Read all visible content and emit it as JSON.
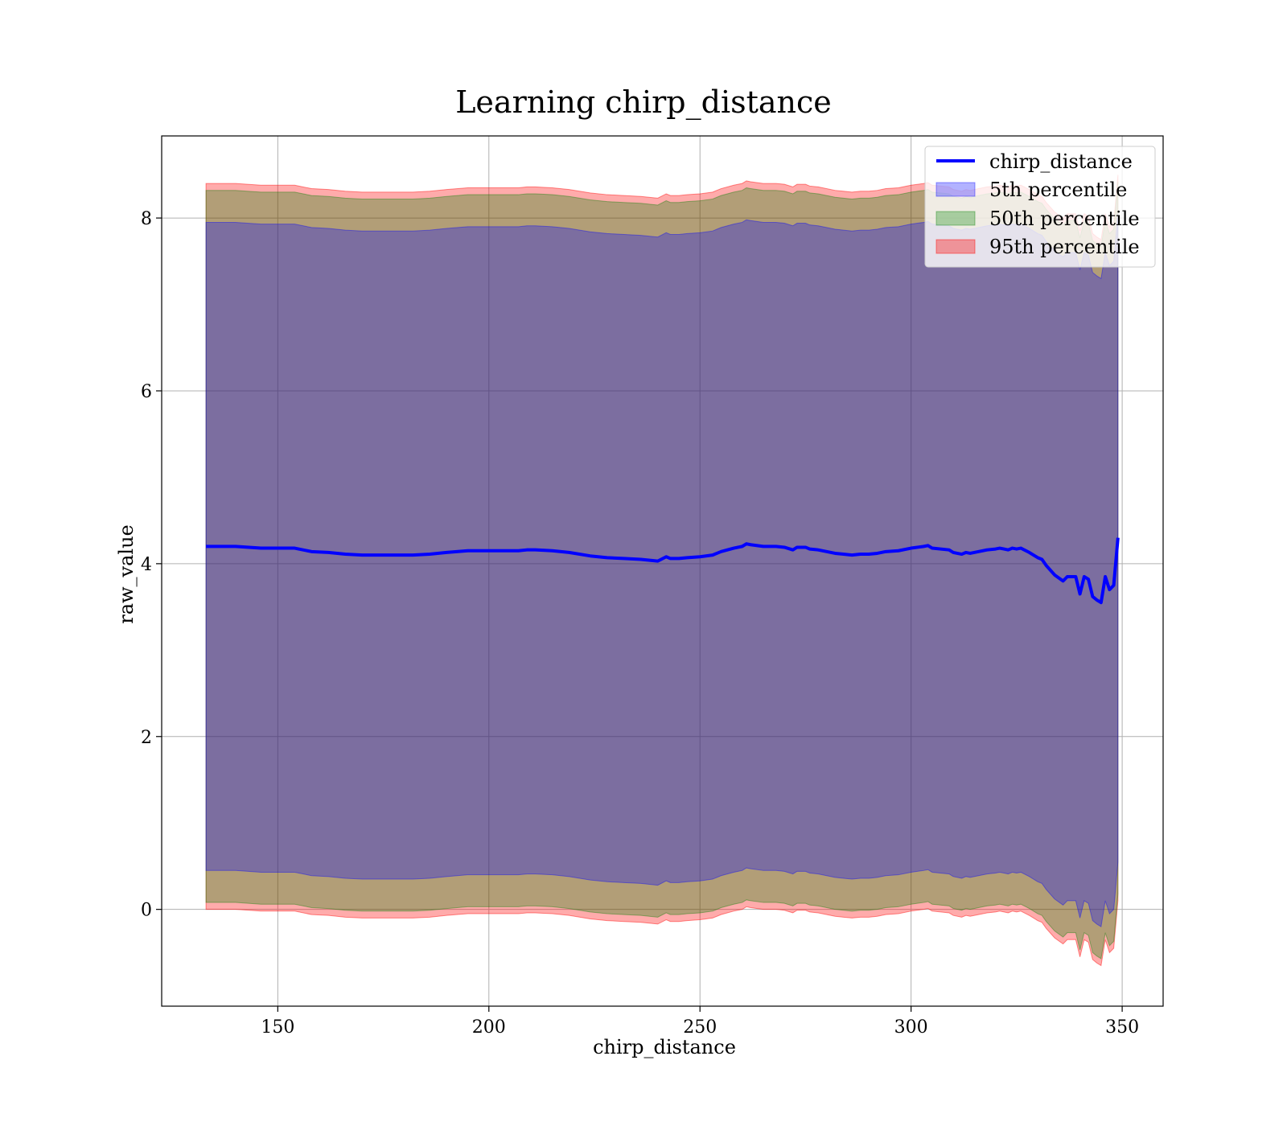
{
  "chart_data": {
    "type": "area",
    "title": "Learning chirp_distance",
    "xlabel": "chirp_distance",
    "ylabel": "raw_value",
    "xlim": [
      122.5,
      359.7
    ],
    "ylim": [
      -1.12,
      8.95
    ],
    "xticks": [
      150,
      200,
      250,
      300,
      350
    ],
    "yticks": [
      0,
      2,
      4,
      6,
      8
    ],
    "grid": true,
    "legend_position": "top-right",
    "x": [
      133,
      140,
      146,
      150,
      154,
      158,
      162,
      166,
      170,
      174,
      178,
      182,
      186,
      190,
      195,
      200,
      204,
      207,
      209,
      211,
      215,
      219,
      224,
      228,
      232,
      236,
      240,
      242,
      243,
      245,
      247,
      250,
      253,
      255,
      258,
      260,
      261,
      262,
      265,
      268,
      270,
      272,
      273,
      275,
      276,
      278,
      282,
      284,
      286,
      288,
      290,
      292,
      294,
      297,
      300,
      303,
      304,
      305,
      309,
      310,
      312,
      313,
      314,
      316,
      318,
      320,
      321,
      322,
      323,
      324,
      325,
      326,
      328,
      330,
      331,
      332,
      334,
      336,
      337,
      339,
      340,
      341,
      342,
      343,
      344,
      345,
      346,
      347,
      348,
      349
    ],
    "series": [
      {
        "name": "chirp_distance",
        "kind": "line",
        "color": "#0000ff",
        "values": [
          4.2,
          4.2,
          4.18,
          4.18,
          4.18,
          4.14,
          4.13,
          4.11,
          4.1,
          4.1,
          4.1,
          4.1,
          4.11,
          4.13,
          4.15,
          4.15,
          4.15,
          4.15,
          4.16,
          4.16,
          4.15,
          4.13,
          4.09,
          4.07,
          4.06,
          4.05,
          4.03,
          4.08,
          4.06,
          4.06,
          4.07,
          4.08,
          4.1,
          4.14,
          4.18,
          4.2,
          4.23,
          4.22,
          4.2,
          4.2,
          4.19,
          4.16,
          4.19,
          4.19,
          4.17,
          4.16,
          4.12,
          4.11,
          4.1,
          4.11,
          4.11,
          4.12,
          4.14,
          4.15,
          4.18,
          4.2,
          4.21,
          4.18,
          4.16,
          4.13,
          4.11,
          4.13,
          4.12,
          4.14,
          4.16,
          4.17,
          4.18,
          4.17,
          4.16,
          4.18,
          4.17,
          4.18,
          4.13,
          4.07,
          4.05,
          3.98,
          3.87,
          3.8,
          3.85,
          3.85,
          3.65,
          3.85,
          3.82,
          3.62,
          3.58,
          3.55,
          3.85,
          3.7,
          3.75,
          4.3
        ]
      },
      {
        "name": "5th percentile",
        "kind": "band",
        "color": "#0000ff",
        "lower": [
          0.45,
          0.45,
          0.43,
          0.43,
          0.43,
          0.39,
          0.38,
          0.36,
          0.35,
          0.35,
          0.35,
          0.35,
          0.36,
          0.38,
          0.4,
          0.4,
          0.4,
          0.4,
          0.41,
          0.41,
          0.4,
          0.38,
          0.34,
          0.32,
          0.31,
          0.3,
          0.28,
          0.33,
          0.31,
          0.31,
          0.32,
          0.33,
          0.35,
          0.39,
          0.43,
          0.45,
          0.48,
          0.47,
          0.45,
          0.45,
          0.44,
          0.41,
          0.44,
          0.44,
          0.42,
          0.41,
          0.37,
          0.36,
          0.35,
          0.36,
          0.36,
          0.37,
          0.39,
          0.4,
          0.43,
          0.45,
          0.46,
          0.43,
          0.41,
          0.38,
          0.36,
          0.38,
          0.37,
          0.39,
          0.41,
          0.42,
          0.43,
          0.42,
          0.41,
          0.43,
          0.42,
          0.43,
          0.38,
          0.32,
          0.3,
          0.23,
          0.12,
          0.05,
          0.1,
          0.1,
          -0.1,
          0.1,
          0.07,
          -0.13,
          -0.17,
          -0.2,
          0.1,
          -0.05,
          0.0,
          0.55
        ],
        "upper": [
          7.95,
          7.95,
          7.93,
          7.93,
          7.93,
          7.89,
          7.88,
          7.86,
          7.85,
          7.85,
          7.85,
          7.85,
          7.86,
          7.88,
          7.9,
          7.9,
          7.9,
          7.9,
          7.91,
          7.91,
          7.9,
          7.88,
          7.84,
          7.82,
          7.81,
          7.8,
          7.78,
          7.83,
          7.81,
          7.81,
          7.82,
          7.83,
          7.85,
          7.89,
          7.93,
          7.95,
          7.98,
          7.97,
          7.95,
          7.95,
          7.94,
          7.91,
          7.94,
          7.94,
          7.92,
          7.91,
          7.87,
          7.86,
          7.85,
          7.86,
          7.86,
          7.87,
          7.89,
          7.9,
          7.93,
          7.95,
          7.96,
          7.93,
          7.91,
          7.88,
          7.86,
          7.88,
          7.87,
          7.89,
          7.91,
          7.92,
          7.93,
          7.92,
          7.91,
          7.93,
          7.92,
          7.93,
          7.88,
          7.82,
          7.8,
          7.73,
          7.62,
          7.55,
          7.6,
          7.6,
          7.4,
          7.6,
          7.57,
          7.37,
          7.33,
          7.3,
          7.6,
          7.45,
          7.5,
          8.05
        ]
      },
      {
        "name": "50th percentile",
        "kind": "band",
        "color": "#008000",
        "lower": [
          0.08,
          0.08,
          0.06,
          0.06,
          0.06,
          0.02,
          0.01,
          -0.01,
          -0.02,
          -0.02,
          -0.02,
          -0.02,
          -0.01,
          0.01,
          0.03,
          0.03,
          0.03,
          0.03,
          0.04,
          0.04,
          0.03,
          0.01,
          -0.03,
          -0.05,
          -0.06,
          -0.07,
          -0.09,
          -0.04,
          -0.06,
          -0.06,
          -0.05,
          -0.04,
          -0.02,
          0.02,
          0.06,
          0.08,
          0.11,
          0.1,
          0.08,
          0.08,
          0.07,
          0.04,
          0.07,
          0.07,
          0.05,
          0.04,
          0.0,
          -0.01,
          -0.02,
          -0.01,
          -0.01,
          0.0,
          0.02,
          0.03,
          0.06,
          0.08,
          0.09,
          0.06,
          0.04,
          0.01,
          -0.01,
          0.01,
          0.0,
          0.02,
          0.04,
          0.05,
          0.06,
          0.05,
          0.04,
          0.06,
          0.05,
          0.06,
          0.01,
          -0.05,
          -0.07,
          -0.14,
          -0.25,
          -0.32,
          -0.27,
          -0.27,
          -0.47,
          -0.27,
          -0.3,
          -0.5,
          -0.54,
          -0.57,
          -0.27,
          -0.42,
          -0.37,
          0.18
        ],
        "upper": [
          8.32,
          8.32,
          8.3,
          8.3,
          8.3,
          8.26,
          8.25,
          8.23,
          8.22,
          8.22,
          8.22,
          8.22,
          8.23,
          8.25,
          8.27,
          8.27,
          8.27,
          8.27,
          8.28,
          8.28,
          8.27,
          8.25,
          8.21,
          8.19,
          8.18,
          8.17,
          8.15,
          8.2,
          8.18,
          8.18,
          8.19,
          8.2,
          8.22,
          8.26,
          8.3,
          8.32,
          8.35,
          8.34,
          8.32,
          8.32,
          8.31,
          8.28,
          8.31,
          8.31,
          8.29,
          8.28,
          8.24,
          8.23,
          8.22,
          8.23,
          8.23,
          8.24,
          8.26,
          8.27,
          8.3,
          8.32,
          8.33,
          8.3,
          8.28,
          8.25,
          8.23,
          8.25,
          8.24,
          8.26,
          8.28,
          8.29,
          8.3,
          8.29,
          8.28,
          8.3,
          8.29,
          8.3,
          8.25,
          8.19,
          8.17,
          8.1,
          7.99,
          7.92,
          7.97,
          7.97,
          7.77,
          7.97,
          7.94,
          7.74,
          7.7,
          7.67,
          7.97,
          7.82,
          7.87,
          8.42
        ]
      },
      {
        "name": "95th percentile",
        "kind": "band",
        "color": "#ff0000",
        "lower": [
          0.0,
          0.0,
          -0.02,
          -0.02,
          -0.02,
          -0.06,
          -0.07,
          -0.09,
          -0.1,
          -0.1,
          -0.1,
          -0.1,
          -0.09,
          -0.07,
          -0.05,
          -0.05,
          -0.05,
          -0.05,
          -0.04,
          -0.04,
          -0.05,
          -0.07,
          -0.11,
          -0.13,
          -0.14,
          -0.15,
          -0.17,
          -0.12,
          -0.14,
          -0.14,
          -0.13,
          -0.12,
          -0.1,
          -0.06,
          -0.02,
          0.0,
          0.03,
          0.02,
          0.0,
          0.0,
          -0.01,
          -0.04,
          -0.01,
          -0.01,
          -0.03,
          -0.04,
          -0.08,
          -0.09,
          -0.1,
          -0.09,
          -0.09,
          -0.08,
          -0.06,
          -0.05,
          -0.02,
          0.0,
          0.01,
          -0.02,
          -0.04,
          -0.07,
          -0.09,
          -0.07,
          -0.08,
          -0.06,
          -0.04,
          -0.03,
          -0.02,
          -0.03,
          -0.04,
          -0.02,
          -0.03,
          -0.02,
          -0.07,
          -0.13,
          -0.15,
          -0.22,
          -0.33,
          -0.4,
          -0.35,
          -0.35,
          -0.55,
          -0.35,
          -0.38,
          -0.58,
          -0.62,
          -0.65,
          -0.35,
          -0.5,
          -0.45,
          0.1
        ],
        "upper": [
          8.4,
          8.4,
          8.38,
          8.38,
          8.38,
          8.34,
          8.33,
          8.31,
          8.3,
          8.3,
          8.3,
          8.3,
          8.31,
          8.33,
          8.35,
          8.35,
          8.35,
          8.35,
          8.36,
          8.36,
          8.35,
          8.33,
          8.29,
          8.27,
          8.26,
          8.25,
          8.23,
          8.28,
          8.26,
          8.26,
          8.27,
          8.28,
          8.3,
          8.34,
          8.38,
          8.4,
          8.43,
          8.42,
          8.4,
          8.4,
          8.39,
          8.36,
          8.39,
          8.39,
          8.37,
          8.36,
          8.32,
          8.31,
          8.3,
          8.31,
          8.31,
          8.32,
          8.34,
          8.35,
          8.38,
          8.4,
          8.41,
          8.38,
          8.36,
          8.33,
          8.31,
          8.33,
          8.32,
          8.34,
          8.36,
          8.37,
          8.38,
          8.37,
          8.36,
          8.38,
          8.37,
          8.38,
          8.33,
          8.27,
          8.25,
          8.18,
          8.07,
          8.0,
          8.05,
          8.05,
          7.85,
          8.05,
          8.02,
          7.82,
          7.78,
          7.75,
          8.05,
          7.9,
          7.95,
          8.5
        ]
      }
    ]
  }
}
